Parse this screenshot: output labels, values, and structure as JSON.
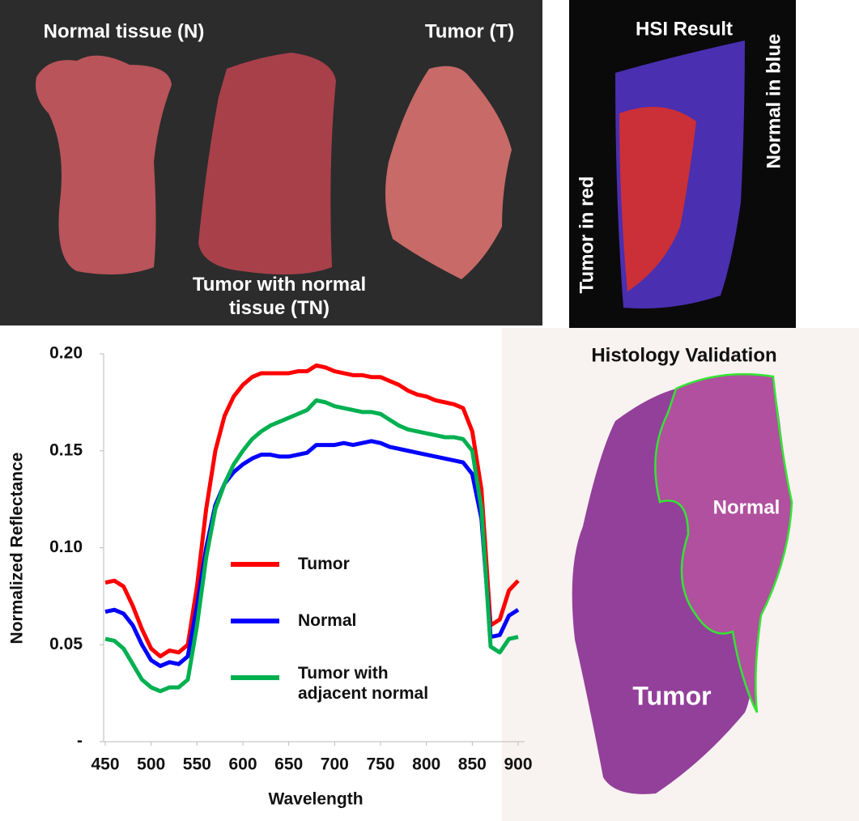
{
  "photo": {
    "normal_label": "Normal tissue (N)",
    "tumor_label": "Tumor (T)",
    "tumor_normal_label": "Tumor with normal tissue (TN)"
  },
  "hsi": {
    "title": "HSI Result",
    "tumor_label": "Tumor in red",
    "normal_label": "Normal in blue"
  },
  "histology": {
    "title": "Histology Validation",
    "normal_label": "Normal",
    "tumor_label": "Tumor"
  },
  "chart_data": {
    "type": "line",
    "x_label": "Wavelength",
    "y_label": "Normalized Reflectance",
    "x": [
      450,
      460,
      470,
      480,
      490,
      500,
      510,
      520,
      530,
      540,
      550,
      560,
      570,
      580,
      590,
      600,
      610,
      620,
      630,
      640,
      650,
      660,
      670,
      680,
      690,
      700,
      710,
      720,
      730,
      740,
      750,
      760,
      770,
      780,
      790,
      800,
      810,
      820,
      830,
      840,
      850,
      860,
      870,
      880,
      890,
      900
    ],
    "series": [
      {
        "name": "Tumor",
        "color": "#ff0000",
        "values": [
          0.082,
          0.083,
          0.08,
          0.07,
          0.058,
          0.048,
          0.044,
          0.047,
          0.046,
          0.05,
          0.08,
          0.12,
          0.15,
          0.168,
          0.178,
          0.184,
          0.188,
          0.19,
          0.19,
          0.19,
          0.19,
          0.191,
          0.191,
          0.194,
          0.193,
          0.191,
          0.19,
          0.189,
          0.189,
          0.188,
          0.188,
          0.186,
          0.184,
          0.181,
          0.179,
          0.178,
          0.176,
          0.175,
          0.174,
          0.172,
          0.16,
          0.13,
          0.06,
          0.063,
          0.078,
          0.083
        ]
      },
      {
        "name": "Normal",
        "color": "#0000ff",
        "values": [
          0.067,
          0.068,
          0.066,
          0.06,
          0.05,
          0.042,
          0.039,
          0.041,
          0.04,
          0.044,
          0.07,
          0.1,
          0.122,
          0.133,
          0.139,
          0.143,
          0.146,
          0.148,
          0.148,
          0.147,
          0.147,
          0.148,
          0.149,
          0.153,
          0.153,
          0.153,
          0.154,
          0.153,
          0.154,
          0.155,
          0.154,
          0.152,
          0.151,
          0.15,
          0.149,
          0.148,
          0.147,
          0.146,
          0.145,
          0.144,
          0.138,
          0.115,
          0.054,
          0.055,
          0.065,
          0.068
        ]
      },
      {
        "name": "Tumor with adjacent normal",
        "color": "#00b050",
        "values": [
          0.053,
          0.052,
          0.048,
          0.04,
          0.032,
          0.028,
          0.026,
          0.028,
          0.028,
          0.032,
          0.06,
          0.095,
          0.12,
          0.133,
          0.143,
          0.15,
          0.156,
          0.16,
          0.163,
          0.165,
          0.167,
          0.169,
          0.171,
          0.176,
          0.175,
          0.173,
          0.172,
          0.171,
          0.17,
          0.17,
          0.169,
          0.166,
          0.163,
          0.161,
          0.16,
          0.159,
          0.158,
          0.157,
          0.157,
          0.156,
          0.15,
          0.12,
          0.049,
          0.046,
          0.053,
          0.054
        ]
      }
    ],
    "xlim": [
      450,
      900
    ],
    "xticks": [
      450,
      500,
      550,
      600,
      650,
      700,
      750,
      800,
      850,
      900
    ],
    "ylim": [
      0,
      0.2
    ],
    "yticks": [
      {
        "value": 0,
        "label": "-"
      },
      0.05,
      {
        "value": 0.1,
        "label": "0.10"
      },
      0.15,
      {
        "value": 0.2,
        "label": "0.20"
      }
    ]
  }
}
